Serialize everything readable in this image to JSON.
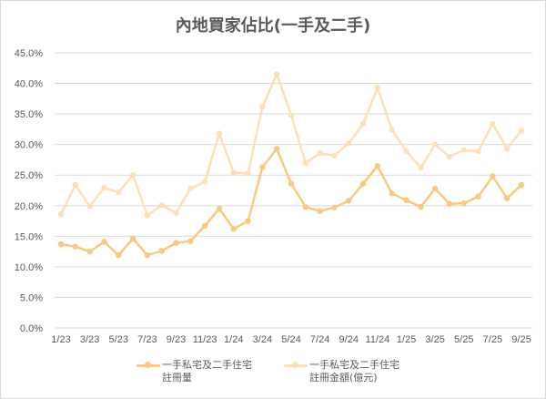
{
  "chart_data": {
    "type": "line",
    "title": "內地買家佔比(一手及二手)",
    "xlabel": "",
    "ylabel": "",
    "ylim": [
      0,
      45
    ],
    "yticks": [
      "0.0%",
      "5.0%",
      "10.0%",
      "15.0%",
      "20.0%",
      "25.0%",
      "30.0%",
      "35.0%",
      "40.0%",
      "45.0%"
    ],
    "grid": true,
    "legend_position": "bottom",
    "x": [
      "1/23",
      "2/23",
      "3/23",
      "4/23",
      "5/23",
      "6/23",
      "7/23",
      "8/23",
      "9/23",
      "10/23",
      "11/23",
      "12/23",
      "1/24",
      "2/24",
      "3/24",
      "4/24",
      "5/24",
      "6/24",
      "7/24",
      "8/24",
      "9/24",
      "10/24",
      "11/24",
      "12/24",
      "1/25",
      "2/25",
      "3/25",
      "4/25",
      "5/25",
      "6/25",
      "7/25",
      "8/25",
      "9/25"
    ],
    "xtick_labels": [
      "1/23",
      "3/23",
      "5/23",
      "7/23",
      "9/23",
      "11/23",
      "1/24",
      "3/24",
      "5/24",
      "7/24",
      "9/24",
      "11/24",
      "1/25",
      "3/25",
      "5/25",
      "7/25",
      "9/25"
    ],
    "series": [
      {
        "name_line1": "一手私宅及二手住宅",
        "name_line2": "註冊量",
        "color": "#F8C97E",
        "values": [
          13.7,
          13.3,
          12.5,
          14.1,
          11.9,
          14.6,
          11.9,
          12.6,
          13.9,
          14.2,
          16.7,
          19.5,
          16.2,
          17.5,
          26.3,
          29.3,
          23.6,
          19.8,
          19.1,
          19.7,
          20.8,
          23.6,
          26.5,
          22.0,
          20.9,
          19.8,
          22.8,
          20.3,
          20.4,
          21.5,
          24.8,
          21.2,
          23.4
        ]
      },
      {
        "name_line1": "一手私宅及二手住宅",
        "name_line2": "註冊金額(億元)",
        "color": "#FBE0B8",
        "values": [
          18.6,
          23.4,
          19.9,
          22.9,
          22.2,
          25.0,
          18.4,
          20.1,
          18.8,
          22.8,
          23.9,
          31.8,
          25.4,
          25.3,
          36.2,
          41.5,
          34.8,
          27.0,
          28.6,
          28.2,
          30.2,
          33.4,
          39.3,
          32.4,
          28.9,
          26.2,
          30.0,
          28.0,
          29.1,
          28.9,
          33.4,
          29.3,
          32.3
        ]
      }
    ]
  }
}
